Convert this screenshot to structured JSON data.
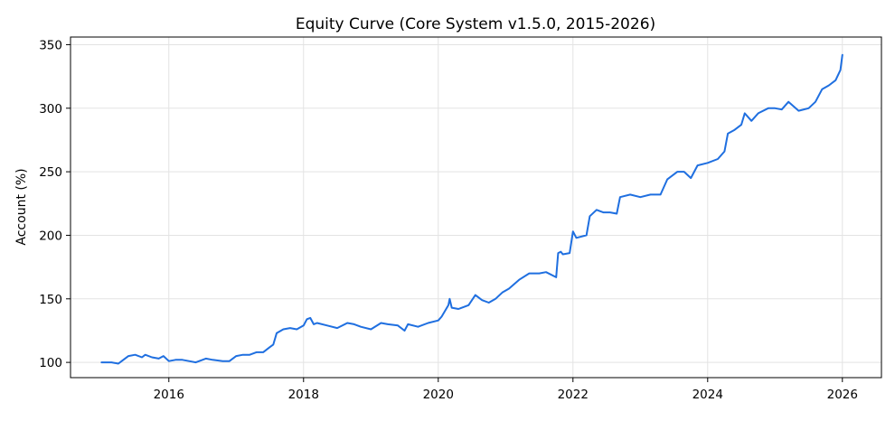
{
  "chart_data": {
    "type": "line",
    "title": "Equity Curve (Core System v1.5.0, 2015-2026)",
    "xlabel": "",
    "ylabel": "Account (%)",
    "xlim": [
      2014.54,
      2026.58
    ],
    "ylim": [
      88,
      356
    ],
    "x_ticks": [
      2016,
      2018,
      2020,
      2022,
      2024,
      2026
    ],
    "x_tick_labels": [
      "2016",
      "2018",
      "2020",
      "2022",
      "2024",
      "2026"
    ],
    "y_ticks": [
      100,
      150,
      200,
      250,
      300,
      350
    ],
    "y_tick_labels": [
      "100",
      "150",
      "200",
      "250",
      "300",
      "350"
    ],
    "grid": true,
    "legend": "none",
    "line_color": "#1f6fe0",
    "series": [
      {
        "x": [
          2015.0,
          2015.15,
          2015.25,
          2015.3,
          2015.4,
          2015.5,
          2015.6,
          2015.65,
          2015.75,
          2015.85,
          2015.92,
          2016.0,
          2016.1,
          2016.2,
          2016.3,
          2016.4,
          2016.5,
          2016.55,
          2016.65,
          2016.8,
          2016.9,
          2017.0,
          2017.1,
          2017.2,
          2017.3,
          2017.4,
          2017.5,
          2017.55,
          2017.6,
          2017.7,
          2017.8,
          2017.9,
          2018.0,
          2018.05,
          2018.1,
          2018.15,
          2018.2,
          2018.35,
          2018.5,
          2018.65,
          2018.75,
          2018.85,
          2019.0,
          2019.15,
          2019.25,
          2019.4,
          2019.5,
          2019.55,
          2019.7,
          2019.85,
          2020.0,
          2020.05,
          2020.15,
          2020.17,
          2020.2,
          2020.3,
          2020.45,
          2020.55,
          2020.65,
          2020.75,
          2020.85,
          2020.95,
          2021.05,
          2021.2,
          2021.35,
          2021.5,
          2021.6,
          2021.75,
          2021.78,
          2021.82,
          2021.85,
          2021.95,
          2022.0,
          2022.05,
          2022.2,
          2022.25,
          2022.35,
          2022.45,
          2022.55,
          2022.65,
          2022.7,
          2022.85,
          2023.0,
          2023.15,
          2023.3,
          2023.4,
          2023.55,
          2023.65,
          2023.75,
          2023.85,
          2024.0,
          2024.15,
          2024.25,
          2024.3,
          2024.4,
          2024.5,
          2024.55,
          2024.65,
          2024.75,
          2024.9,
          2025.0,
          2025.1,
          2025.2,
          2025.35,
          2025.5,
          2025.6,
          2025.7,
          2025.8,
          2025.9,
          2025.97,
          2026.0
        ],
        "y": [
          100,
          100,
          99,
          101,
          105,
          106,
          104,
          106,
          104,
          103,
          105,
          101,
          102,
          102,
          101,
          100,
          102,
          103,
          102,
          101,
          101,
          105,
          106,
          106,
          108,
          108,
          112,
          114,
          123,
          126,
          127,
          126,
          129,
          134,
          135,
          130,
          131,
          129,
          127,
          131,
          130,
          128,
          126,
          131,
          130,
          129,
          125,
          130,
          128,
          131,
          133,
          136,
          145,
          150,
          143,
          142,
          145,
          153,
          149,
          147,
          150,
          155,
          158,
          165,
          170,
          170,
          171,
          167,
          186,
          187,
          185,
          186,
          203,
          198,
          200,
          215,
          220,
          218,
          218,
          217,
          230,
          232,
          230,
          232,
          232,
          244,
          250,
          250,
          245,
          255,
          257,
          260,
          266,
          280,
          283,
          287,
          296,
          290,
          296,
          300,
          300,
          299,
          305,
          298,
          300,
          305,
          315,
          318,
          322,
          330,
          342
        ]
      }
    ]
  }
}
